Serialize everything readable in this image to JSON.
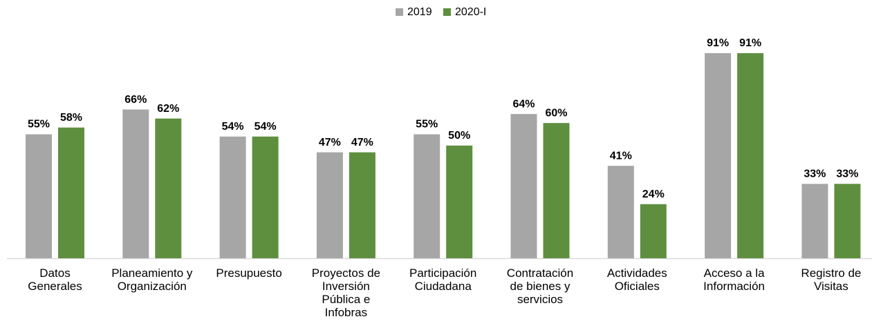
{
  "chart_data": {
    "type": "bar",
    "categories": [
      "Datos\nGenerales",
      "Planeamiento y\nOrganización",
      "Presupuesto",
      "Proyectos de\nInversión\nPública e\nInfobras",
      "Participación\nCiudadana",
      "Contratación\nde bienes y\nservicios",
      "Actividades\nOficiales",
      "Acceso a la\nInformación",
      "Registro de\nVisitas"
    ],
    "series": [
      {
        "name": "2019",
        "color": "#a6a6a6",
        "values": [
          55,
          66,
          54,
          47,
          55,
          64,
          41,
          91,
          33
        ],
        "value_labels": [
          "55%",
          "66%",
          "54%",
          "47%",
          "55%",
          "64%",
          "41%",
          "91%",
          "33%"
        ]
      },
      {
        "name": "2020-I",
        "color": "#5e8f3f",
        "values": [
          58,
          62,
          54,
          47,
          50,
          60,
          24,
          91,
          33
        ],
        "value_labels": [
          "58%",
          "62%",
          "54%",
          "47%",
          "50%",
          "60%",
          "24%",
          "91%",
          "33%"
        ]
      }
    ],
    "legend": "top"
  }
}
